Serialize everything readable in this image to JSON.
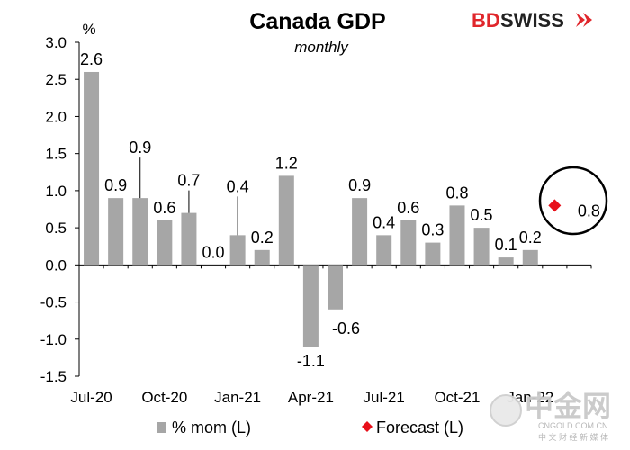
{
  "chart_data": {
    "type": "bar",
    "title": "Canada GDP",
    "subtitle": "monthly",
    "yunit": "%",
    "ylim": [
      -1.5,
      3.0
    ],
    "yticks": [
      "-1.5",
      "-1.0",
      "-0.5",
      "0.0",
      "0.5",
      "1.0",
      "1.5",
      "2.0",
      "2.5",
      "3.0"
    ],
    "x_tick_labels": [
      {
        "index": 0,
        "label": "Jul-20"
      },
      {
        "index": 3,
        "label": "Oct-20"
      },
      {
        "index": 6,
        "label": "Jan-21"
      },
      {
        "index": 9,
        "label": "Apr-21"
      },
      {
        "index": 12,
        "label": "Jul-21"
      },
      {
        "index": 15,
        "label": "Oct-21"
      },
      {
        "index": 18,
        "label": "Jan-22"
      }
    ],
    "series": [
      {
        "name": "% mom (L)",
        "color": "#a6a6a6",
        "values": [
          2.6,
          0.9,
          0.9,
          0.6,
          0.7,
          0.0,
          0.4,
          0.2,
          1.2,
          -1.1,
          -0.6,
          0.9,
          0.4,
          0.6,
          0.3,
          0.8,
          0.5,
          0.1,
          0.2
        ],
        "labels": [
          "2.6",
          "0.9",
          "0.9",
          "0.6",
          "0.7",
          "0.0",
          "0.4",
          "0.2",
          "1.2",
          "-1.1",
          "-0.6",
          "0.9",
          "0.4",
          "0.6",
          "0.3",
          "0.8",
          "0.5",
          "0.1",
          "0.2"
        ]
      },
      {
        "name": "Forecast (L)",
        "color": "#e8101a",
        "type": "scatter",
        "index": 19,
        "value": 0.8,
        "label": "0.8"
      }
    ],
    "legend_position": "bottom",
    "grid": false
  },
  "brand": {
    "part1": "BD",
    "part2": "SWISS",
    "accent": "#e0262b"
  },
  "watermark": {
    "big": "中金网",
    "site": "CNGOLD.COM.CN",
    "sub": "中 文 财 经 新 媒 体"
  }
}
